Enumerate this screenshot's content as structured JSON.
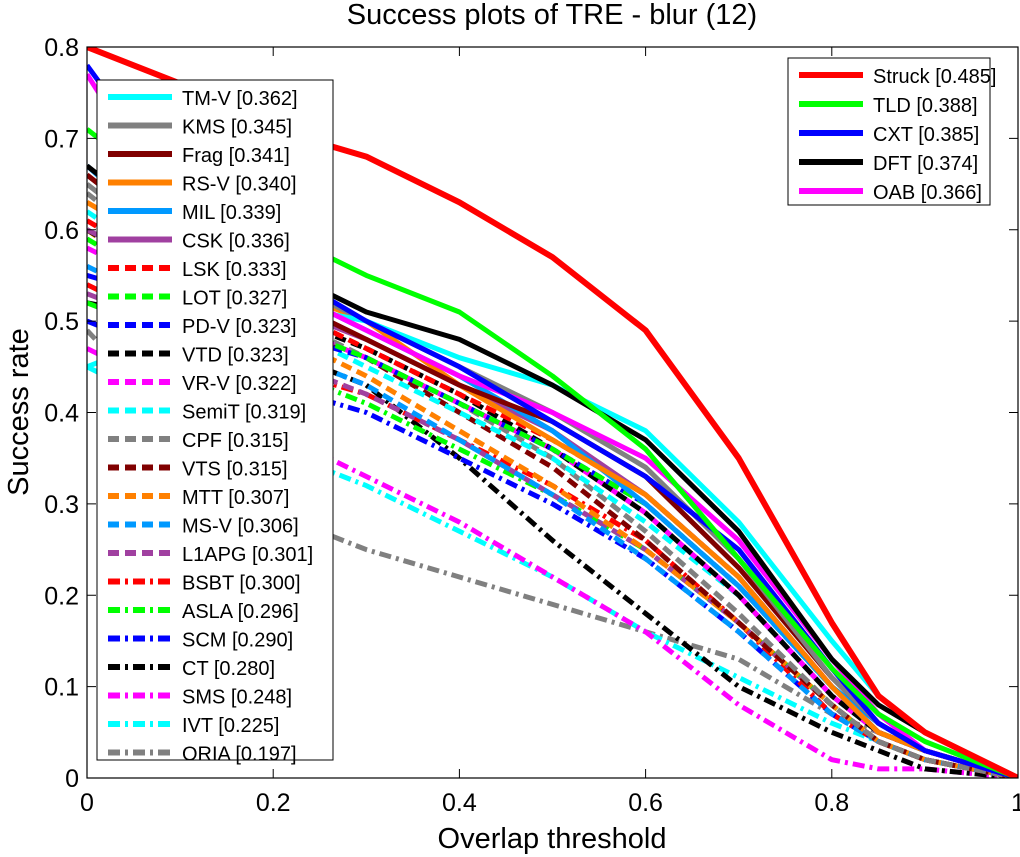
{
  "chart_data": {
    "type": "line",
    "title": "Success plots of TRE - blur (12)",
    "xlabel": "Overlap threshold",
    "ylabel": "Success rate",
    "xlim": [
      0,
      1
    ],
    "ylim": [
      0,
      0.8
    ],
    "xticks": [
      0,
      0.2,
      0.4,
      0.6,
      0.8,
      1
    ],
    "xtick_labels": [
      "0",
      "0.2",
      "0.4",
      "0.6",
      "0.8",
      "1"
    ],
    "yticks": [
      0,
      0.1,
      0.2,
      0.3,
      0.4,
      0.5,
      0.6,
      0.7,
      0.8
    ],
    "ytick_labels": [
      "0",
      "0.1",
      "0.2",
      "0.3",
      "0.4",
      "0.5",
      "0.6",
      "0.7",
      "0.8"
    ],
    "grid": false,
    "x": [
      0,
      0.1,
      0.2,
      0.3,
      0.4,
      0.5,
      0.6,
      0.7,
      0.8,
      0.85,
      0.9,
      1.0
    ],
    "legends": [
      {
        "placement": "top-right",
        "entries": [
          "Struck [0.485]",
          "TLD [0.388]",
          "CXT [0.385]",
          "DFT [0.374]",
          "OAB [0.366]"
        ]
      },
      {
        "placement": "top-left",
        "entries": [
          "TM-V [0.362]",
          "KMS [0.345]",
          "Frag [0.341]",
          "RS-V [0.340]",
          "MIL [0.339]",
          "CSK [0.336]",
          "LSK [0.333]",
          "LOT [0.327]",
          "PD-V [0.323]",
          "VTD [0.323]",
          "VR-V [0.322]",
          "SemiT [0.319]",
          "CPF [0.315]",
          "VTS [0.315]",
          "MTT [0.307]",
          "MS-V [0.306]",
          "L1APG [0.301]",
          "BSBT [0.300]",
          "ASLA [0.296]",
          "SCM [0.290]",
          "CT [0.280]",
          "SMS [0.248]",
          "IVT [0.225]",
          "ORIA [0.197]"
        ]
      }
    ],
    "series": [
      {
        "name": "Struck [0.485]",
        "color": "#ff0000",
        "style": "solid",
        "values": [
          0.8,
          0.76,
          0.71,
          0.68,
          0.63,
          0.57,
          0.49,
          0.35,
          0.17,
          0.09,
          0.05,
          0.0
        ]
      },
      {
        "name": "TLD [0.388]",
        "color": "#00ff00",
        "style": "solid",
        "values": [
          0.71,
          0.63,
          0.6,
          0.55,
          0.51,
          0.44,
          0.36,
          0.24,
          0.12,
          0.07,
          0.04,
          0.0
        ]
      },
      {
        "name": "CXT [0.385]",
        "color": "#0000ff",
        "style": "solid",
        "values": [
          0.78,
          0.64,
          0.56,
          0.5,
          0.45,
          0.39,
          0.33,
          0.25,
          0.12,
          0.06,
          0.03,
          0.0
        ]
      },
      {
        "name": "DFT [0.374]",
        "color": "#000000",
        "style": "solid",
        "values": [
          0.67,
          0.59,
          0.56,
          0.51,
          0.48,
          0.43,
          0.37,
          0.27,
          0.13,
          0.08,
          0.05,
          0.0
        ]
      },
      {
        "name": "OAB [0.366]",
        "color": "#ff00ff",
        "style": "solid",
        "values": [
          0.77,
          0.61,
          0.54,
          0.49,
          0.44,
          0.4,
          0.35,
          0.26,
          0.13,
          0.07,
          0.03,
          0.0
        ]
      },
      {
        "name": "TM-V [0.362]",
        "color": "#00ffff",
        "style": "solid",
        "values": [
          0.45,
          0.49,
          0.52,
          0.5,
          0.46,
          0.43,
          0.38,
          0.28,
          0.15,
          0.09,
          0.05,
          0.0
        ]
      },
      {
        "name": "KMS [0.345]",
        "color": "#808080",
        "style": "solid",
        "values": [
          0.65,
          0.57,
          0.55,
          0.5,
          0.45,
          0.4,
          0.34,
          0.24,
          0.11,
          0.06,
          0.03,
          0.0
        ]
      },
      {
        "name": "Frag [0.341]",
        "color": "#800000",
        "style": "solid",
        "values": [
          0.66,
          0.58,
          0.53,
          0.48,
          0.43,
          0.39,
          0.33,
          0.23,
          0.11,
          0.06,
          0.03,
          0.0
        ]
      },
      {
        "name": "RS-V [0.340]",
        "color": "#ff8000",
        "style": "solid",
        "values": [
          0.63,
          0.57,
          0.54,
          0.5,
          0.43,
          0.37,
          0.31,
          0.22,
          0.1,
          0.05,
          0.03,
          0.0
        ]
      },
      {
        "name": "MIL [0.339]",
        "color": "#0099ff",
        "style": "solid",
        "values": [
          0.67,
          0.58,
          0.54,
          0.49,
          0.44,
          0.38,
          0.3,
          0.21,
          0.1,
          0.06,
          0.03,
          0.0
        ]
      },
      {
        "name": "CSK [0.336]",
        "color": "#a040a0",
        "style": "solid",
        "values": [
          0.6,
          0.55,
          0.52,
          0.48,
          0.43,
          0.38,
          0.31,
          0.22,
          0.1,
          0.05,
          0.03,
          0.0
        ]
      },
      {
        "name": "LSK [0.333]",
        "color": "#ff0000",
        "style": "dashed",
        "values": [
          0.61,
          0.55,
          0.52,
          0.47,
          0.42,
          0.37,
          0.31,
          0.22,
          0.1,
          0.05,
          0.03,
          0.0
        ]
      },
      {
        "name": "LOT [0.327]",
        "color": "#00ff00",
        "style": "dashed",
        "values": [
          0.59,
          0.53,
          0.5,
          0.46,
          0.41,
          0.36,
          0.3,
          0.21,
          0.1,
          0.05,
          0.03,
          0.0
        ]
      },
      {
        "name": "PD-V [0.323]",
        "color": "#0000ff",
        "style": "dashed",
        "values": [
          0.55,
          0.52,
          0.49,
          0.46,
          0.41,
          0.36,
          0.3,
          0.21,
          0.1,
          0.05,
          0.03,
          0.0
        ]
      },
      {
        "name": "VTD [0.323]",
        "color": "#000000",
        "style": "dashed",
        "values": [
          0.6,
          0.54,
          0.51,
          0.47,
          0.42,
          0.36,
          0.29,
          0.2,
          0.09,
          0.05,
          0.03,
          0.0
        ]
      },
      {
        "name": "VR-V [0.322]",
        "color": "#ff00ff",
        "style": "dashed",
        "values": [
          0.58,
          0.53,
          0.5,
          0.46,
          0.41,
          0.36,
          0.29,
          0.2,
          0.09,
          0.05,
          0.03,
          0.0
        ]
      },
      {
        "name": "SemiT [0.319]",
        "color": "#00ffff",
        "style": "dashed",
        "values": [
          0.62,
          0.55,
          0.5,
          0.45,
          0.4,
          0.35,
          0.28,
          0.2,
          0.09,
          0.05,
          0.03,
          0.0
        ]
      },
      {
        "name": "CPF [0.315]",
        "color": "#808080",
        "style": "dashed",
        "values": [
          0.64,
          0.56,
          0.51,
          0.46,
          0.41,
          0.35,
          0.27,
          0.18,
          0.08,
          0.04,
          0.02,
          0.0
        ]
      },
      {
        "name": "VTS [0.315]",
        "color": "#800000",
        "style": "dashed",
        "values": [
          0.6,
          0.54,
          0.5,
          0.46,
          0.4,
          0.34,
          0.26,
          0.17,
          0.08,
          0.04,
          0.02,
          0.0
        ]
      },
      {
        "name": "MTT [0.307]",
        "color": "#ff8000",
        "style": "dashed",
        "values": [
          0.6,
          0.53,
          0.49,
          0.44,
          0.38,
          0.32,
          0.25,
          0.17,
          0.08,
          0.04,
          0.02,
          0.0
        ]
      },
      {
        "name": "MS-V [0.306]",
        "color": "#0099ff",
        "style": "dashed",
        "values": [
          0.56,
          0.51,
          0.47,
          0.43,
          0.37,
          0.31,
          0.24,
          0.16,
          0.07,
          0.04,
          0.02,
          0.0
        ]
      },
      {
        "name": "L1APG [0.301]",
        "color": "#a040a0",
        "style": "dashed",
        "values": [
          0.53,
          0.49,
          0.46,
          0.42,
          0.37,
          0.31,
          0.25,
          0.17,
          0.08,
          0.04,
          0.02,
          0.0
        ]
      },
      {
        "name": "BSBT [0.300]",
        "color": "#ff0000",
        "style": "dashdot",
        "values": [
          0.54,
          0.49,
          0.45,
          0.42,
          0.37,
          0.32,
          0.26,
          0.17,
          0.07,
          0.04,
          0.02,
          0.0
        ]
      },
      {
        "name": "ASLA [0.296]",
        "color": "#00ff00",
        "style": "dashdot",
        "values": [
          0.52,
          0.48,
          0.45,
          0.41,
          0.36,
          0.31,
          0.25,
          0.17,
          0.08,
          0.04,
          0.02,
          0.0
        ]
      },
      {
        "name": "SCM [0.290]",
        "color": "#0000ff",
        "style": "dashdot",
        "values": [
          0.5,
          0.46,
          0.43,
          0.4,
          0.35,
          0.3,
          0.24,
          0.16,
          0.07,
          0.04,
          0.02,
          0.0
        ]
      },
      {
        "name": "CT [0.280]",
        "color": "#000000",
        "style": "dashdot",
        "values": [
          0.52,
          0.5,
          0.47,
          0.43,
          0.35,
          0.26,
          0.18,
          0.1,
          0.05,
          0.03,
          0.01,
          0.0
        ]
      },
      {
        "name": "SMS [0.248]",
        "color": "#ff00ff",
        "style": "dashdot",
        "values": [
          0.47,
          0.42,
          0.38,
          0.33,
          0.28,
          0.22,
          0.16,
          0.08,
          0.02,
          0.01,
          0.01,
          0.0
        ]
      },
      {
        "name": "IVT [0.225]",
        "color": "#00ffff",
        "style": "dashdot",
        "values": [
          0.45,
          0.4,
          0.36,
          0.32,
          0.27,
          0.22,
          0.16,
          0.11,
          0.06,
          0.04,
          0.02,
          0.0
        ]
      },
      {
        "name": "ORIA [0.197]",
        "color": "#808080",
        "style": "dashdot",
        "values": [
          0.49,
          0.38,
          0.29,
          0.25,
          0.22,
          0.19,
          0.16,
          0.13,
          0.07,
          0.05,
          0.03,
          0.0
        ]
      }
    ]
  }
}
